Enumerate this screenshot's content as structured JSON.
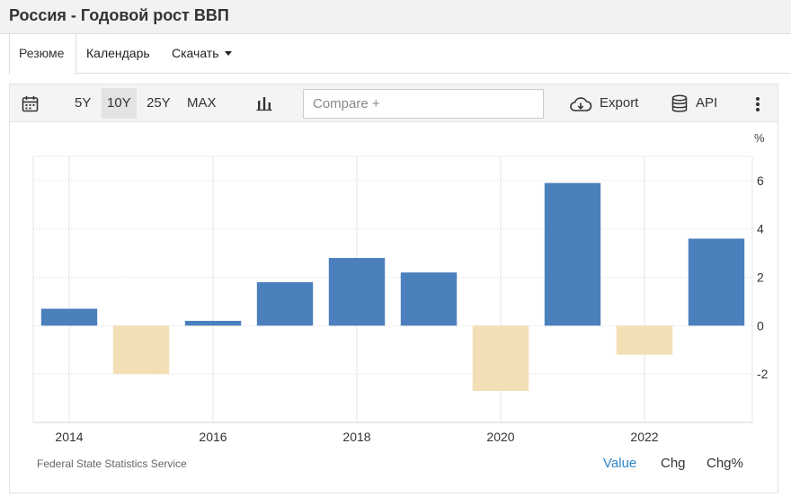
{
  "header": {
    "title": "Россия - Годовой рост ВВП"
  },
  "tabs": [
    {
      "label": "Резюме",
      "active": true
    },
    {
      "label": "Календарь"
    },
    {
      "label": "Скачать"
    }
  ],
  "toolbar": {
    "ranges": [
      "5Y",
      "10Y",
      "25Y",
      "MAX"
    ],
    "selected_range": "10Y",
    "compare_placeholder": "Compare +",
    "export_label": "Export",
    "api_label": "API",
    "icons": [
      "calendar-icon",
      "bar-chart-icon",
      "cloud-download-icon",
      "database-icon",
      "more-vertical-icon"
    ]
  },
  "chart": {
    "unit_label": "%",
    "source": "Federal State Statistics Service",
    "modes": [
      "Value",
      "Chg",
      "Chg%"
    ],
    "active_mode": "Value"
  },
  "chart_data": {
    "type": "bar",
    "x": [
      2014,
      2015,
      2016,
      2017,
      2018,
      2019,
      2020,
      2021,
      2022,
      2023
    ],
    "values": [
      0.7,
      -2.0,
      0.2,
      1.8,
      2.8,
      2.2,
      -2.7,
      5.9,
      -1.2,
      3.6
    ],
    "ylim": [
      -4,
      7
    ],
    "yticks": [
      -2,
      0,
      2,
      4,
      6
    ],
    "xtick_labels": [
      "2014",
      "2016",
      "2018",
      "2020",
      "2022"
    ],
    "positive_color": "#4c80bd",
    "negative_color": "#f3dfb6",
    "grid": true,
    "y_axis_position": "right"
  }
}
